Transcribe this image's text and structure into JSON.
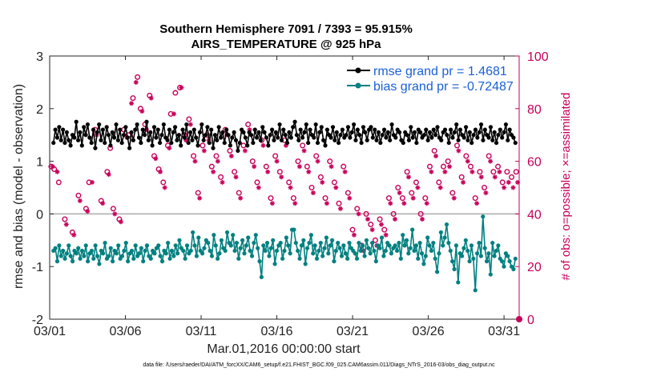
{
  "chart_data": {
    "type": "line",
    "title_line1": "Southern Hemisphere 7091 / 7393 = 95.915%",
    "title_line2": "AIRS_TEMPERATURE @ 925 hPa",
    "xlabel": "Mar.01,2016 00:00:00 start",
    "ylabel": "rmse and bias (model - observation)",
    "ylabel_right": "# of obs: o=possible; ×=assimilated",
    "footnote": "data file: /Users/raeder/DAI/ATM_forcXX/CAM6_setup/f.e21.FHIST_BGC.f09_025.CAM6assim.011/Diags_NTrS_2016-03/obs_diag_output.nc",
    "xlim": [
      1,
      32
    ],
    "ylim": [
      -2,
      3
    ],
    "ylim_right": [
      0,
      100
    ],
    "x_ticks": [
      1,
      6,
      11,
      16,
      21,
      26,
      31
    ],
    "x_tick_labels": [
      "03/01",
      "03/06",
      "03/11",
      "03/16",
      "03/21",
      "03/26",
      "03/31"
    ],
    "y_ticks": [
      -2,
      -1,
      0,
      1,
      2,
      3
    ],
    "y_tick_labels": [
      "-2",
      "-1",
      "0",
      "1",
      "2",
      "3"
    ],
    "y_ticks_right": [
      0,
      20,
      40,
      60,
      80,
      100
    ],
    "y_tick_labels_right": [
      "0",
      "20",
      "40",
      "60",
      "80",
      "100"
    ],
    "colors": {
      "rmse": "#000000",
      "bias": "#008080",
      "obs": "#c8005a",
      "zero_line": "#aaaaaa"
    },
    "series": [
      {
        "name": "rmse grand pr = 1.4681",
        "key": "rmse",
        "values": [
          1.35,
          1.6,
          1.45,
          1.65,
          1.4,
          1.6,
          1.35,
          1.55,
          1.4,
          1.3,
          1.5,
          1.45,
          1.75,
          1.4,
          1.55,
          1.3,
          1.65,
          1.5,
          1.7,
          1.45,
          1.35,
          1.6,
          1.25,
          1.55,
          1.7,
          1.4,
          1.6,
          1.35,
          1.65,
          1.5,
          1.3,
          1.55,
          1.45,
          1.7,
          1.4,
          1.6,
          1.35,
          1.5,
          1.65,
          1.45,
          1.25,
          1.55,
          1.4,
          1.6,
          1.7,
          1.45,
          1.35,
          1.6,
          1.5,
          1.75,
          1.4,
          1.55,
          1.3,
          1.65,
          1.45,
          1.6,
          1.35,
          1.5,
          1.7,
          1.45,
          1.4,
          1.6,
          1.35,
          1.55,
          1.65,
          1.4,
          1.5,
          1.3,
          1.6,
          1.45,
          1.7,
          1.35,
          1.55,
          1.4,
          1.6,
          1.45,
          1.3,
          1.55,
          1.7,
          1.4,
          1.5,
          1.65,
          1.35,
          1.6,
          1.25,
          1.5,
          1.4,
          1.65,
          1.45,
          1.55,
          1.35,
          1.6,
          1.5,
          1.3,
          1.45,
          1.55,
          1.4,
          1.2,
          1.35,
          1.6,
          1.55,
          1.45,
          1.3,
          1.55,
          1.5,
          1.35,
          1.6,
          1.45,
          1.55,
          1.4,
          1.65,
          1.55,
          1.45,
          1.3,
          1.5,
          1.6,
          1.4,
          1.55,
          1.45,
          1.7,
          1.4,
          1.6,
          1.5,
          1.35,
          1.55,
          1.45,
          1.65,
          1.75,
          1.5,
          1.4,
          1.6,
          1.45,
          1.55,
          1.7,
          1.35,
          1.6,
          1.5,
          1.45,
          1.7,
          1.35,
          1.55,
          1.65,
          1.4,
          1.3,
          1.6,
          1.5,
          1.45,
          1.65,
          1.4,
          1.55,
          1.35,
          1.5,
          1.6,
          1.45,
          1.5,
          1.65,
          1.45,
          1.55,
          1.7,
          1.4,
          1.6,
          1.5,
          1.35,
          1.65,
          1.55,
          1.4,
          1.6,
          1.65,
          1.45,
          1.6,
          1.4,
          1.55,
          1.35,
          1.5,
          1.6,
          1.45,
          1.55,
          1.4,
          1.7,
          1.5,
          1.45,
          1.6,
          1.55,
          1.4,
          1.35,
          1.55,
          1.5,
          1.4,
          1.65,
          1.45,
          1.55,
          1.35,
          1.6,
          1.55,
          1.45,
          1.5,
          1.6,
          1.4,
          1.55,
          1.45,
          1.6,
          1.5,
          1.65,
          1.45,
          1.4,
          1.55,
          1.6,
          1.5,
          1.35,
          1.6,
          1.45,
          1.55,
          1.7,
          1.4,
          1.6,
          1.5,
          1.45,
          1.65,
          1.4,
          1.55,
          1.35,
          1.5,
          1.6,
          1.45,
          1.55,
          1.7,
          1.4,
          1.6,
          1.5,
          1.45,
          1.65,
          1.4,
          1.55,
          1.35,
          1.5,
          1.6,
          1.45,
          1.55,
          1.7,
          1.4,
          1.6,
          1.5,
          1.45,
          1.35
        ]
      },
      {
        "name": "bias grand pr = -0.72487",
        "key": "bias",
        "values": [
          -0.7,
          -0.65,
          -0.9,
          -0.6,
          -0.8,
          -0.7,
          -0.85,
          -0.75,
          -0.6,
          -0.8,
          -0.9,
          -0.7,
          -0.75,
          -0.65,
          -0.85,
          -0.7,
          -0.8,
          -0.6,
          -0.9,
          -0.75,
          -0.7,
          -0.85,
          -0.6,
          -0.8,
          -0.95,
          -0.7,
          -0.75,
          -0.55,
          -0.85,
          -0.8,
          -0.65,
          -0.9,
          -0.7,
          -0.75,
          -0.6,
          -0.85,
          -0.8,
          -0.7,
          -0.55,
          -0.9,
          -0.75,
          -0.7,
          -0.85,
          -0.6,
          -0.8,
          -0.75,
          -0.65,
          -0.9,
          -0.7,
          -0.6,
          -0.8,
          -0.85,
          -0.7,
          -0.75,
          -0.65,
          -0.6,
          -0.8,
          -0.9,
          -0.7,
          -0.75,
          -0.55,
          -0.85,
          -0.7,
          -0.8,
          -0.6,
          -0.75,
          -0.5,
          -0.65,
          -0.7,
          -0.85,
          -0.6,
          -0.75,
          -0.7,
          -0.35,
          -0.6,
          -0.8,
          -0.45,
          -0.7,
          -0.75,
          -0.65,
          -0.5,
          -0.55,
          -0.7,
          -0.8,
          -0.4,
          -0.6,
          -0.85,
          -0.75,
          -0.5,
          -0.65,
          -0.7,
          -0.35,
          -0.55,
          -0.6,
          -0.4,
          -0.7,
          -0.55,
          -0.85,
          -0.65,
          -0.5,
          -0.75,
          -0.6,
          -0.45,
          -0.7,
          -0.8,
          -0.55,
          -0.4,
          -0.65,
          -0.9,
          -1.2,
          -0.6,
          -0.7,
          -0.55,
          -0.8,
          -0.65,
          -0.5,
          -0.95,
          -0.7,
          -0.6,
          -0.55,
          -0.85,
          -0.7,
          -0.45,
          -0.6,
          -0.75,
          -0.3,
          -0.3,
          -0.55,
          -0.7,
          -0.85,
          -0.6,
          -0.5,
          -0.95,
          -0.65,
          -0.55,
          -0.4,
          -0.75,
          -0.6,
          -0.85,
          -0.7,
          -0.55,
          -0.8,
          -0.65,
          -0.45,
          -0.75,
          -0.6,
          -0.5,
          -0.9,
          -0.7,
          -0.55,
          -0.65,
          -0.8,
          -0.6,
          -0.75,
          -0.85,
          -0.55,
          -0.65,
          -0.7,
          -0.75,
          -0.85,
          -0.55,
          -0.7,
          -0.6,
          -0.8,
          -0.5,
          -0.65,
          -0.75,
          -0.55,
          -0.7,
          -0.9,
          -0.6,
          -0.65,
          -0.45,
          -0.8,
          -0.7,
          -0.55,
          -0.6,
          -0.75,
          -0.65,
          -0.6,
          -0.7,
          -0.55,
          -0.85,
          -0.4,
          -0.6,
          -0.5,
          -0.75,
          -0.65,
          -0.3,
          -0.7,
          -0.6,
          -0.85,
          -0.55,
          -0.75,
          -0.95,
          -0.8,
          -0.45,
          -0.6,
          -0.7,
          -0.55,
          -0.85,
          -1.1,
          -0.75,
          -0.35,
          -0.6,
          -0.45,
          -0.2,
          -0.55,
          -0.7,
          -0.9,
          -1.05,
          -0.6,
          -1.3,
          -0.75,
          -0.8,
          -0.65,
          -0.5,
          -0.7,
          -0.9,
          -0.6,
          -0.85,
          -1.45,
          -0.75,
          -0.55,
          -0.8,
          -0.05,
          -0.65,
          -0.9,
          -0.75,
          -1.15,
          -0.55,
          -0.8,
          -0.7,
          -0.6,
          -0.85,
          -0.9,
          -1.0,
          -0.75,
          -0.8,
          -0.9,
          -1.0,
          -1.05,
          -0.85
        ]
      }
    ],
    "obs_possible": [
      [
        1.1,
        58
      ],
      [
        1.3,
        57
      ],
      [
        1.6,
        52
      ],
      [
        2.0,
        38
      ],
      [
        2.5,
        33
      ],
      [
        2.9,
        47
      ],
      [
        3.4,
        42
      ],
      [
        3.6,
        52
      ],
      [
        4.0,
        72
      ],
      [
        4.4,
        45
      ],
      [
        4.8,
        56
      ],
      [
        5.0,
        65
      ],
      [
        5.2,
        42
      ],
      [
        5.6,
        38
      ],
      [
        5.9,
        72
      ],
      [
        6.2,
        70
      ],
      [
        6.5,
        84
      ],
      [
        6.8,
        92
      ],
      [
        7.0,
        80
      ],
      [
        7.3,
        74
      ],
      [
        7.6,
        85
      ],
      [
        7.9,
        62
      ],
      [
        8.2,
        57
      ],
      [
        8.5,
        52
      ],
      [
        8.8,
        66
      ],
      [
        9.0,
        78
      ],
      [
        9.3,
        86
      ],
      [
        9.6,
        88
      ],
      [
        9.9,
        70
      ],
      [
        10.2,
        76
      ],
      [
        10.5,
        62
      ],
      [
        10.8,
        48
      ],
      [
        11.1,
        66
      ],
      [
        11.4,
        70
      ],
      [
        11.7,
        58
      ],
      [
        12.0,
        62
      ],
      [
        12.3,
        54
      ],
      [
        12.6,
        72
      ],
      [
        12.9,
        64
      ],
      [
        13.2,
        56
      ],
      [
        13.5,
        48
      ],
      [
        13.8,
        66
      ],
      [
        14.1,
        74
      ],
      [
        14.4,
        60
      ],
      [
        14.7,
        52
      ],
      [
        15.0,
        68
      ],
      [
        15.3,
        58
      ],
      [
        15.6,
        46
      ],
      [
        15.9,
        62
      ],
      [
        16.2,
        56
      ],
      [
        16.5,
        68
      ],
      [
        16.8,
        52
      ],
      [
        17.1,
        46
      ],
      [
        17.4,
        60
      ],
      [
        17.7,
        66
      ],
      [
        18.0,
        58
      ],
      [
        18.3,
        50
      ],
      [
        18.6,
        62
      ],
      [
        18.9,
        54
      ],
      [
        19.2,
        46
      ],
      [
        19.5,
        60
      ],
      [
        19.8,
        52
      ],
      [
        20.1,
        44
      ],
      [
        20.4,
        58
      ],
      [
        20.7,
        48
      ],
      [
        21.0,
        34
      ],
      [
        21.3,
        42
      ],
      [
        21.6,
        28
      ],
      [
        21.9,
        40
      ],
      [
        22.2,
        36
      ],
      [
        22.5,
        30
      ],
      [
        22.8,
        38
      ],
      [
        23.1,
        34
      ],
      [
        23.4,
        46
      ],
      [
        23.7,
        40
      ],
      [
        24.0,
        50
      ],
      [
        24.3,
        46
      ],
      [
        24.6,
        56
      ],
      [
        24.9,
        48
      ],
      [
        25.2,
        52
      ],
      [
        25.5,
        40
      ],
      [
        25.8,
        46
      ],
      [
        26.1,
        58
      ],
      [
        26.4,
        64
      ],
      [
        26.7,
        52
      ],
      [
        27.0,
        58
      ],
      [
        27.3,
        60
      ],
      [
        27.6,
        48
      ],
      [
        27.9,
        66
      ],
      [
        28.2,
        54
      ],
      [
        28.5,
        62
      ],
      [
        28.8,
        58
      ],
      [
        29.1,
        46
      ],
      [
        29.4,
        56
      ],
      [
        29.7,
        50
      ],
      [
        30.0,
        62
      ],
      [
        30.3,
        56
      ],
      [
        30.6,
        58
      ],
      [
        30.9,
        52
      ],
      [
        31.2,
        56
      ],
      [
        31.5,
        54
      ],
      [
        31.8,
        56
      ]
    ],
    "obs_assimilated": [
      [
        1.2,
        58
      ],
      [
        1.5,
        56
      ],
      [
        2.1,
        36
      ],
      [
        2.6,
        32
      ],
      [
        3.0,
        45
      ],
      [
        3.5,
        41
      ],
      [
        3.8,
        52
      ],
      [
        4.1,
        70
      ],
      [
        4.5,
        44
      ],
      [
        4.9,
        55
      ],
      [
        5.3,
        40
      ],
      [
        5.7,
        37
      ],
      [
        6.1,
        69
      ],
      [
        6.4,
        82
      ],
      [
        6.7,
        90
      ],
      [
        7.1,
        79
      ],
      [
        7.4,
        72
      ],
      [
        7.7,
        84
      ],
      [
        8.0,
        61
      ],
      [
        8.3,
        56
      ],
      [
        8.6,
        50
      ],
      [
        8.9,
        65
      ],
      [
        9.2,
        78
      ],
      [
        9.7,
        88
      ],
      [
        10.0,
        68
      ],
      [
        10.3,
        74
      ],
      [
        10.6,
        60
      ],
      [
        10.9,
        46
      ],
      [
        11.2,
        64
      ],
      [
        11.5,
        68
      ],
      [
        11.8,
        56
      ],
      [
        12.1,
        60
      ],
      [
        12.4,
        52
      ],
      [
        12.7,
        70
      ],
      [
        13.0,
        62
      ],
      [
        13.3,
        54
      ],
      [
        13.6,
        46
      ],
      [
        13.9,
        64
      ],
      [
        14.2,
        72
      ],
      [
        14.5,
        58
      ],
      [
        14.8,
        50
      ],
      [
        15.1,
        66
      ],
      [
        15.4,
        56
      ],
      [
        15.7,
        44
      ],
      [
        16.0,
        60
      ],
      [
        16.3,
        54
      ],
      [
        16.6,
        66
      ],
      [
        16.9,
        50
      ],
      [
        17.2,
        44
      ],
      [
        17.5,
        58
      ],
      [
        17.8,
        64
      ],
      [
        18.1,
        56
      ],
      [
        18.4,
        48
      ],
      [
        18.7,
        60
      ],
      [
        19.0,
        52
      ],
      [
        19.3,
        44
      ],
      [
        19.6,
        58
      ],
      [
        19.9,
        50
      ],
      [
        20.2,
        42
      ],
      [
        20.5,
        56
      ],
      [
        20.8,
        46
      ],
      [
        21.1,
        32
      ],
      [
        21.4,
        40
      ],
      [
        21.7,
        26
      ],
      [
        22.0,
        38
      ],
      [
        22.3,
        34
      ],
      [
        22.6,
        28
      ],
      [
        22.9,
        36
      ],
      [
        23.2,
        32
      ],
      [
        23.5,
        44
      ],
      [
        23.8,
        38
      ],
      [
        24.1,
        48
      ],
      [
        24.4,
        44
      ],
      [
        24.7,
        54
      ],
      [
        25.0,
        46
      ],
      [
        25.3,
        50
      ],
      [
        25.6,
        38
      ],
      [
        25.9,
        44
      ],
      [
        26.2,
        56
      ],
      [
        26.5,
        62
      ],
      [
        26.8,
        50
      ],
      [
        27.1,
        56
      ],
      [
        27.4,
        58
      ],
      [
        27.7,
        46
      ],
      [
        28.0,
        64
      ],
      [
        28.3,
        52
      ],
      [
        28.6,
        60
      ],
      [
        28.9,
        56
      ],
      [
        29.2,
        44
      ],
      [
        29.5,
        54
      ],
      [
        29.8,
        48
      ],
      [
        30.1,
        60
      ],
      [
        30.4,
        54
      ],
      [
        30.7,
        56
      ],
      [
        31.0,
        50
      ],
      [
        31.3,
        52
      ],
      [
        31.6,
        50
      ],
      [
        31.9,
        52
      ]
    ]
  }
}
